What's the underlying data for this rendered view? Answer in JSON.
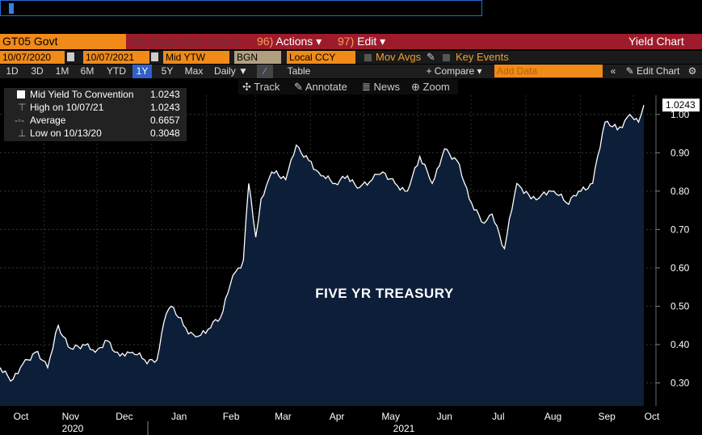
{
  "command_line": {
    "value": ""
  },
  "header": {
    "ticker": "GT05 Govt",
    "suggested": {
      "num": "89)",
      "label": "Suggested Charts"
    },
    "actions": {
      "num": "96)",
      "label": "Actions ▾"
    },
    "edit": {
      "num": "97)",
      "label": "Edit ▾"
    },
    "title": "Yield Chart"
  },
  "controls": {
    "start_date": "10/07/2020",
    "end_date": "10/07/2021",
    "field": "Mid YTW",
    "source": "BGN",
    "currency": "Local CCY",
    "mov_avgs": "Mov Avgs",
    "key_events": "Key Events",
    "periods": [
      "1D",
      "3D",
      "1M",
      "6M",
      "YTD",
      "1Y",
      "5Y",
      "Max"
    ],
    "active_period": "1Y",
    "frequency": "Daily ▼",
    "table": "Table",
    "compare": "+ Compare ▾",
    "add_data_placeholder": "Add Data",
    "edit_chart": "Edit Chart",
    "track": "Track",
    "annotate": "Annotate",
    "news": "News",
    "zoom": "Zoom"
  },
  "legend": {
    "series_label": "Mid Yield To Convention",
    "series_value": "1.0243",
    "high_label": "High on 10/07/21",
    "high_value": "1.0243",
    "avg_label": "Average",
    "avg_value": "0.6657",
    "low_label": "Low on 10/13/20",
    "low_value": "0.3048"
  },
  "chart_data": {
    "type": "area",
    "title": "FIVE YR TREASURY",
    "series": [
      {
        "name": "Mid Yield To Convention",
        "color": "#ffffff",
        "fill": "#0d1e38",
        "x": [
          "2020-10-07",
          "2020-10-13",
          "2020-10-20",
          "2020-10-27",
          "2020-11-03",
          "2020-11-09",
          "2020-11-16",
          "2020-11-23",
          "2020-11-30",
          "2020-12-07",
          "2020-12-14",
          "2020-12-21",
          "2020-12-28",
          "2021-01-04",
          "2021-01-08",
          "2021-01-12",
          "2021-01-19",
          "2021-01-26",
          "2021-02-02",
          "2021-02-09",
          "2021-02-16",
          "2021-02-22",
          "2021-02-25",
          "2021-03-01",
          "2021-03-04",
          "2021-03-10",
          "2021-03-18",
          "2021-03-24",
          "2021-03-31",
          "2021-04-07",
          "2021-04-15",
          "2021-04-22",
          "2021-04-29",
          "2021-05-06",
          "2021-05-12",
          "2021-05-19",
          "2021-05-26",
          "2021-06-02",
          "2021-06-09",
          "2021-06-16",
          "2021-06-23",
          "2021-06-30",
          "2021-07-07",
          "2021-07-13",
          "2021-07-20",
          "2021-07-27",
          "2021-08-04",
          "2021-08-10",
          "2021-08-17",
          "2021-08-24",
          "2021-08-31",
          "2021-09-08",
          "2021-09-15",
          "2021-09-22",
          "2021-09-29",
          "2021-10-04",
          "2021-10-07"
        ],
        "values": [
          0.34,
          0.3048,
          0.35,
          0.38,
          0.34,
          0.45,
          0.39,
          0.4,
          0.38,
          0.41,
          0.37,
          0.38,
          0.36,
          0.36,
          0.46,
          0.5,
          0.45,
          0.42,
          0.44,
          0.47,
          0.58,
          0.62,
          0.82,
          0.68,
          0.78,
          0.85,
          0.83,
          0.92,
          0.88,
          0.84,
          0.82,
          0.84,
          0.81,
          0.83,
          0.85,
          0.82,
          0.8,
          0.89,
          0.82,
          0.91,
          0.88,
          0.78,
          0.72,
          0.74,
          0.65,
          0.82,
          0.78,
          0.79,
          0.8,
          0.77,
          0.8,
          0.82,
          0.98,
          0.96,
          1.0,
          0.98,
          1.0243
        ]
      }
    ],
    "last_value_label": "1.0243",
    "yticks": [
      "0.30",
      "0.40",
      "0.50",
      "0.60",
      "0.70",
      "0.80",
      "0.90",
      "1.00"
    ],
    "ylim": [
      0.24,
      1.05
    ],
    "xticks": [
      "Oct",
      "Nov",
      "Dec",
      "Jan",
      "Feb",
      "Mar",
      "Apr",
      "May",
      "Jun",
      "Jul",
      "Aug",
      "Sep",
      "Oct"
    ],
    "year_labels": [
      "2020",
      "2021"
    ],
    "grid": true
  }
}
